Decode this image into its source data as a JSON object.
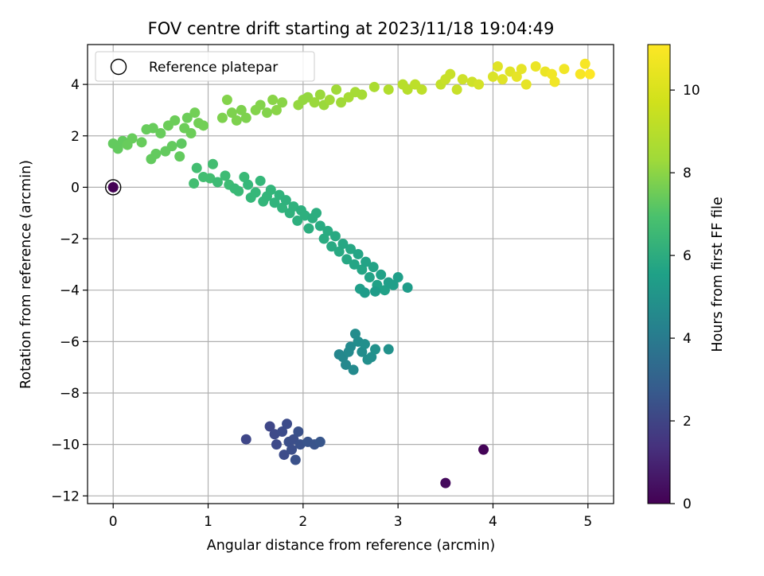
{
  "chart_data": {
    "type": "scatter",
    "title": "FOV centre drift starting at 2023/11/18 19:04:49",
    "xlabel": "Angular distance from reference (arcmin)",
    "ylabel": "Rotation from reference (arcmin)",
    "xlim": [
      -0.27,
      5.27
    ],
    "ylim": [
      -12.3,
      5.55
    ],
    "x_ticks": [
      0,
      1,
      2,
      3,
      4,
      5
    ],
    "x_tick_labels": [
      "0",
      "1",
      "2",
      "3",
      "4",
      "5"
    ],
    "y_ticks": [
      4,
      2,
      0,
      -2,
      -4,
      -6,
      -8,
      -10,
      -12
    ],
    "y_tick_labels": [
      "4",
      "2",
      "0",
      "−2",
      "−4",
      "−6",
      "−8",
      "−10",
      "−12"
    ],
    "grid": true,
    "legend": {
      "placement": "top-left",
      "label": "Reference platepar"
    },
    "colorbar": {
      "label": "Hours from first FF file",
      "range": [
        0,
        11.1
      ],
      "ticks": [
        0,
        2,
        4,
        6,
        8,
        10
      ],
      "tick_labels": [
        "0",
        "2",
        "4",
        "6",
        "8",
        "10"
      ],
      "colormap": "viridis"
    },
    "reference_point": {
      "x": 0,
      "y": 0,
      "hours": 0
    },
    "points": [
      {
        "x": 0.0,
        "y": 0.0,
        "h": 0.0
      },
      {
        "x": 3.9,
        "y": -10.2,
        "h": 0.1
      },
      {
        "x": 3.5,
        "y": -11.5,
        "h": 0.3
      },
      {
        "x": 1.4,
        "y": -9.8,
        "h": 2.4
      },
      {
        "x": 1.65,
        "y": -9.3,
        "h": 2.4
      },
      {
        "x": 1.7,
        "y": -9.6,
        "h": 2.5
      },
      {
        "x": 1.72,
        "y": -10.0,
        "h": 2.5
      },
      {
        "x": 1.78,
        "y": -9.5,
        "h": 2.6
      },
      {
        "x": 1.8,
        "y": -10.4,
        "h": 2.6
      },
      {
        "x": 1.83,
        "y": -9.2,
        "h": 2.6
      },
      {
        "x": 1.85,
        "y": -9.9,
        "h": 2.7
      },
      {
        "x": 1.88,
        "y": -10.2,
        "h": 2.7
      },
      {
        "x": 1.9,
        "y": -9.8,
        "h": 2.7
      },
      {
        "x": 1.92,
        "y": -10.6,
        "h": 2.8
      },
      {
        "x": 1.95,
        "y": -9.5,
        "h": 2.8
      },
      {
        "x": 1.97,
        "y": -10.0,
        "h": 2.8
      },
      {
        "x": 2.05,
        "y": -9.9,
        "h": 2.9
      },
      {
        "x": 2.12,
        "y": -10.0,
        "h": 2.9
      },
      {
        "x": 2.18,
        "y": -9.9,
        "h": 3.0
      },
      {
        "x": 2.38,
        "y": -6.5,
        "h": 5.1
      },
      {
        "x": 2.42,
        "y": -6.6,
        "h": 5.2
      },
      {
        "x": 2.45,
        "y": -6.9,
        "h": 5.2
      },
      {
        "x": 2.48,
        "y": -6.4,
        "h": 5.3
      },
      {
        "x": 2.5,
        "y": -6.2,
        "h": 5.3
      },
      {
        "x": 2.53,
        "y": -7.1,
        "h": 5.3
      },
      {
        "x": 2.55,
        "y": -5.7,
        "h": 5.4
      },
      {
        "x": 2.58,
        "y": -6.0,
        "h": 5.4
      },
      {
        "x": 2.62,
        "y": -6.4,
        "h": 5.4
      },
      {
        "x": 2.65,
        "y": -6.1,
        "h": 5.5
      },
      {
        "x": 2.68,
        "y": -6.7,
        "h": 5.5
      },
      {
        "x": 2.72,
        "y": -6.6,
        "h": 5.5
      },
      {
        "x": 2.76,
        "y": -6.3,
        "h": 5.6
      },
      {
        "x": 2.9,
        "y": -6.3,
        "h": 5.6
      },
      {
        "x": 0.85,
        "y": 0.15,
        "h": 7.7
      },
      {
        "x": 0.88,
        "y": 0.75,
        "h": 7.7
      },
      {
        "x": 0.95,
        "y": 0.4,
        "h": 7.7
      },
      {
        "x": 1.02,
        "y": 0.35,
        "h": 7.7
      },
      {
        "x": 1.05,
        "y": 0.9,
        "h": 7.7
      },
      {
        "x": 1.1,
        "y": 0.2,
        "h": 7.6
      },
      {
        "x": 1.18,
        "y": 0.45,
        "h": 7.6
      },
      {
        "x": 1.22,
        "y": 0.1,
        "h": 7.6
      },
      {
        "x": 1.28,
        "y": -0.05,
        "h": 7.5
      },
      {
        "x": 1.32,
        "y": -0.15,
        "h": 7.5
      },
      {
        "x": 1.38,
        "y": 0.4,
        "h": 7.5
      },
      {
        "x": 1.42,
        "y": 0.1,
        "h": 7.4
      },
      {
        "x": 1.45,
        "y": -0.4,
        "h": 7.4
      },
      {
        "x": 1.5,
        "y": -0.2,
        "h": 7.4
      },
      {
        "x": 1.55,
        "y": 0.25,
        "h": 7.4
      },
      {
        "x": 1.58,
        "y": -0.55,
        "h": 7.3
      },
      {
        "x": 1.62,
        "y": -0.35,
        "h": 7.3
      },
      {
        "x": 1.66,
        "y": -0.1,
        "h": 7.3
      },
      {
        "x": 1.7,
        "y": -0.6,
        "h": 7.2
      },
      {
        "x": 1.75,
        "y": -0.3,
        "h": 7.2
      },
      {
        "x": 1.78,
        "y": -0.8,
        "h": 7.2
      },
      {
        "x": 1.82,
        "y": -0.5,
        "h": 7.1
      },
      {
        "x": 1.86,
        "y": -1.0,
        "h": 7.1
      },
      {
        "x": 1.9,
        "y": -0.75,
        "h": 7.1
      },
      {
        "x": 1.94,
        "y": -1.3,
        "h": 7.0
      },
      {
        "x": 1.98,
        "y": -0.9,
        "h": 7.0
      },
      {
        "x": 2.02,
        "y": -1.1,
        "h": 7.0
      },
      {
        "x": 2.06,
        "y": -1.6,
        "h": 6.9
      },
      {
        "x": 2.1,
        "y": -1.2,
        "h": 6.9
      },
      {
        "x": 2.14,
        "y": -1.0,
        "h": 6.9
      },
      {
        "x": 2.18,
        "y": -1.5,
        "h": 6.8
      },
      {
        "x": 2.22,
        "y": -2.0,
        "h": 6.8
      },
      {
        "x": 2.26,
        "y": -1.7,
        "h": 6.8
      },
      {
        "x": 2.3,
        "y": -2.3,
        "h": 6.7
      },
      {
        "x": 2.34,
        "y": -1.9,
        "h": 6.7
      },
      {
        "x": 2.38,
        "y": -2.5,
        "h": 6.7
      },
      {
        "x": 2.42,
        "y": -2.2,
        "h": 6.6
      },
      {
        "x": 2.46,
        "y": -2.8,
        "h": 6.6
      },
      {
        "x": 2.5,
        "y": -2.4,
        "h": 6.6
      },
      {
        "x": 2.54,
        "y": -3.0,
        "h": 6.5
      },
      {
        "x": 2.58,
        "y": -2.6,
        "h": 6.5
      },
      {
        "x": 2.62,
        "y": -3.2,
        "h": 6.5
      },
      {
        "x": 2.66,
        "y": -2.9,
        "h": 6.4
      },
      {
        "x": 2.7,
        "y": -3.5,
        "h": 6.4
      },
      {
        "x": 2.74,
        "y": -3.1,
        "h": 6.4
      },
      {
        "x": 2.78,
        "y": -3.8,
        "h": 6.3
      },
      {
        "x": 2.82,
        "y": -3.4,
        "h": 6.3
      },
      {
        "x": 2.86,
        "y": -4.0,
        "h": 6.3
      },
      {
        "x": 2.9,
        "y": -3.7,
        "h": 6.2
      },
      {
        "x": 2.95,
        "y": -3.8,
        "h": 6.2
      },
      {
        "x": 3.0,
        "y": -3.5,
        "h": 6.2
      },
      {
        "x": 3.1,
        "y": -3.9,
        "h": 6.1
      },
      {
        "x": 2.6,
        "y": -3.95,
        "h": 6.2
      },
      {
        "x": 2.65,
        "y": -4.1,
        "h": 6.1
      },
      {
        "x": 2.76,
        "y": -4.05,
        "h": 6.1
      },
      {
        "x": 0.0,
        "y": 1.7,
        "h": 8.4
      },
      {
        "x": 0.05,
        "y": 1.5,
        "h": 8.4
      },
      {
        "x": 0.1,
        "y": 1.8,
        "h": 8.4
      },
      {
        "x": 0.15,
        "y": 1.65,
        "h": 8.5
      },
      {
        "x": 0.2,
        "y": 1.9,
        "h": 8.5
      },
      {
        "x": 0.3,
        "y": 1.75,
        "h": 8.5
      },
      {
        "x": 0.35,
        "y": 2.25,
        "h": 8.5
      },
      {
        "x": 0.4,
        "y": 1.1,
        "h": 8.4
      },
      {
        "x": 0.42,
        "y": 2.3,
        "h": 8.5
      },
      {
        "x": 0.45,
        "y": 1.3,
        "h": 8.4
      },
      {
        "x": 0.5,
        "y": 2.1,
        "h": 8.5
      },
      {
        "x": 0.55,
        "y": 1.4,
        "h": 8.4
      },
      {
        "x": 0.58,
        "y": 2.4,
        "h": 8.6
      },
      {
        "x": 0.62,
        "y": 1.6,
        "h": 8.4
      },
      {
        "x": 0.65,
        "y": 2.6,
        "h": 8.6
      },
      {
        "x": 0.7,
        "y": 1.2,
        "h": 8.4
      },
      {
        "x": 0.72,
        "y": 1.7,
        "h": 8.3
      },
      {
        "x": 0.75,
        "y": 2.3,
        "h": 8.6
      },
      {
        "x": 0.78,
        "y": 2.7,
        "h": 8.6
      },
      {
        "x": 0.82,
        "y": 2.1,
        "h": 8.6
      },
      {
        "x": 0.86,
        "y": 2.9,
        "h": 8.7
      },
      {
        "x": 0.9,
        "y": 2.5,
        "h": 8.7
      },
      {
        "x": 0.95,
        "y": 2.4,
        "h": 8.7
      },
      {
        "x": 1.15,
        "y": 2.7,
        "h": 8.9
      },
      {
        "x": 1.2,
        "y": 3.4,
        "h": 9.0
      },
      {
        "x": 1.25,
        "y": 2.9,
        "h": 8.9
      },
      {
        "x": 1.3,
        "y": 2.6,
        "h": 8.9
      },
      {
        "x": 1.35,
        "y": 3.0,
        "h": 8.9
      },
      {
        "x": 1.4,
        "y": 2.7,
        "h": 8.9
      },
      {
        "x": 1.5,
        "y": 3.0,
        "h": 9.0
      },
      {
        "x": 1.55,
        "y": 3.2,
        "h": 9.0
      },
      {
        "x": 1.62,
        "y": 2.9,
        "h": 9.0
      },
      {
        "x": 1.68,
        "y": 3.4,
        "h": 9.1
      },
      {
        "x": 1.72,
        "y": 3.0,
        "h": 9.1
      },
      {
        "x": 1.78,
        "y": 3.3,
        "h": 9.1
      },
      {
        "x": 1.95,
        "y": 3.2,
        "h": 9.3
      },
      {
        "x": 2.0,
        "y": 3.4,
        "h": 9.3
      },
      {
        "x": 2.05,
        "y": 3.5,
        "h": 9.3
      },
      {
        "x": 2.12,
        "y": 3.3,
        "h": 9.4
      },
      {
        "x": 2.18,
        "y": 3.6,
        "h": 9.4
      },
      {
        "x": 2.22,
        "y": 3.2,
        "h": 9.4
      },
      {
        "x": 2.28,
        "y": 3.4,
        "h": 9.5
      },
      {
        "x": 2.35,
        "y": 3.8,
        "h": 9.5
      },
      {
        "x": 2.4,
        "y": 3.3,
        "h": 9.5
      },
      {
        "x": 2.48,
        "y": 3.5,
        "h": 9.6
      },
      {
        "x": 2.55,
        "y": 3.7,
        "h": 9.6
      },
      {
        "x": 2.62,
        "y": 3.6,
        "h": 9.6
      },
      {
        "x": 2.75,
        "y": 3.9,
        "h": 9.7
      },
      {
        "x": 2.9,
        "y": 3.8,
        "h": 9.8
      },
      {
        "x": 3.05,
        "y": 4.0,
        "h": 9.9
      },
      {
        "x": 3.1,
        "y": 3.8,
        "h": 9.9
      },
      {
        "x": 3.18,
        "y": 4.0,
        "h": 10.0
      },
      {
        "x": 3.25,
        "y": 3.8,
        "h": 10.0
      },
      {
        "x": 3.45,
        "y": 4.0,
        "h": 10.1
      },
      {
        "x": 3.5,
        "y": 4.2,
        "h": 10.2
      },
      {
        "x": 3.55,
        "y": 4.4,
        "h": 10.2
      },
      {
        "x": 3.62,
        "y": 3.8,
        "h": 10.2
      },
      {
        "x": 3.68,
        "y": 4.2,
        "h": 10.3
      },
      {
        "x": 3.78,
        "y": 4.1,
        "h": 10.3
      },
      {
        "x": 3.85,
        "y": 4.0,
        "h": 10.4
      },
      {
        "x": 4.0,
        "y": 4.3,
        "h": 10.5
      },
      {
        "x": 4.05,
        "y": 4.7,
        "h": 10.6
      },
      {
        "x": 4.1,
        "y": 4.2,
        "h": 10.6
      },
      {
        "x": 4.18,
        "y": 4.5,
        "h": 10.6
      },
      {
        "x": 4.25,
        "y": 4.3,
        "h": 10.7
      },
      {
        "x": 4.3,
        "y": 4.6,
        "h": 10.7
      },
      {
        "x": 4.35,
        "y": 4.0,
        "h": 10.7
      },
      {
        "x": 4.45,
        "y": 4.7,
        "h": 10.8
      },
      {
        "x": 4.55,
        "y": 4.5,
        "h": 10.8
      },
      {
        "x": 4.62,
        "y": 4.4,
        "h": 10.9
      },
      {
        "x": 4.65,
        "y": 4.1,
        "h": 10.9
      },
      {
        "x": 4.75,
        "y": 4.6,
        "h": 10.9
      },
      {
        "x": 4.92,
        "y": 4.4,
        "h": 11.0
      },
      {
        "x": 4.97,
        "y": 4.8,
        "h": 11.0
      },
      {
        "x": 5.02,
        "y": 4.4,
        "h": 11.1
      }
    ]
  }
}
